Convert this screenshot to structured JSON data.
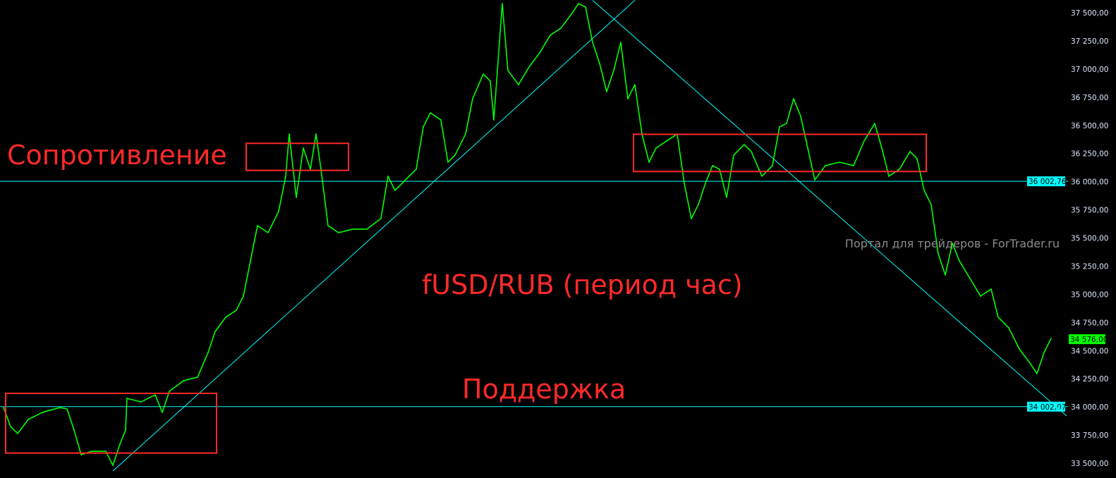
{
  "chart_data": {
    "type": "line",
    "title": "fUSD/RUB (период час)",
    "xlabel": "",
    "ylabel": "",
    "ylim": [
      33500,
      37500
    ],
    "yticks": [
      "33 500,00",
      "33 750,00",
      "34 000,00",
      "34 250,00",
      "34 500,00",
      "34 750,00",
      "35 000,00",
      "35 250,00",
      "35 500,00",
      "35 750,00",
      "36 000,00",
      "36 250,00",
      "36 500,00",
      "36 750,00",
      "37 000,00",
      "37 250,00",
      "37 500,00"
    ],
    "ytick_values": [
      33500,
      33750,
      34000,
      34250,
      34500,
      34750,
      35000,
      35250,
      35500,
      35750,
      36000,
      36250,
      36500,
      36750,
      37000,
      37250,
      37500
    ],
    "grid": false,
    "series": [
      {
        "color": "#00ff00",
        "points": [
          [
            1,
            33994
          ],
          [
            3,
            33825
          ],
          [
            5,
            33763
          ],
          [
            8,
            33888
          ],
          [
            12,
            33951
          ],
          [
            17,
            33994
          ],
          [
            19,
            33982
          ],
          [
            21,
            33794
          ],
          [
            23,
            33575
          ],
          [
            26,
            33606
          ],
          [
            30,
            33606
          ],
          [
            32,
            33481
          ],
          [
            34,
            33669
          ],
          [
            35.6,
            33794
          ],
          [
            36,
            34076
          ],
          [
            40,
            34044
          ],
          [
            44,
            34107
          ],
          [
            46,
            33951
          ],
          [
            48,
            34138
          ],
          [
            52,
            34232
          ],
          [
            56,
            34264
          ],
          [
            59,
            34483
          ],
          [
            61,
            34670
          ],
          [
            64,
            34796
          ],
          [
            67,
            34858
          ],
          [
            69,
            34983
          ],
          [
            71,
            35296
          ],
          [
            73,
            35609
          ],
          [
            76,
            35547
          ],
          [
            79,
            35735
          ],
          [
            81,
            36048
          ],
          [
            82,
            36423
          ],
          [
            84,
            35860
          ],
          [
            86,
            36298
          ],
          [
            88,
            36110
          ],
          [
            89.6,
            36423
          ],
          [
            91,
            36110
          ],
          [
            93,
            35609
          ],
          [
            96,
            35547
          ],
          [
            100,
            35578
          ],
          [
            104,
            35578
          ],
          [
            108,
            35672
          ],
          [
            110,
            36048
          ],
          [
            112,
            35922
          ],
          [
            116,
            36048
          ],
          [
            118,
            36110
          ],
          [
            120,
            36486
          ],
          [
            122,
            36611
          ],
          [
            125,
            36548
          ],
          [
            127,
            36173
          ],
          [
            129,
            36235
          ],
          [
            132,
            36423
          ],
          [
            134,
            36736
          ],
          [
            137,
            36955
          ],
          [
            139,
            36893
          ],
          [
            140,
            36548
          ],
          [
            141.6,
            37237
          ],
          [
            142.4,
            37581
          ],
          [
            144,
            36987
          ],
          [
            147,
            36861
          ],
          [
            150,
            37018
          ],
          [
            153,
            37143
          ],
          [
            156,
            37300
          ],
          [
            159,
            37362
          ],
          [
            162,
            37487
          ],
          [
            164,
            37581
          ],
          [
            166,
            37550
          ],
          [
            168,
            37237
          ],
          [
            170,
            37049
          ],
          [
            172,
            36799
          ],
          [
            174,
            36987
          ],
          [
            176,
            37237
          ],
          [
            178,
            36736
          ],
          [
            180,
            36861
          ],
          [
            182,
            36423
          ],
          [
            184,
            36173
          ],
          [
            186,
            36298
          ],
          [
            189,
            36361
          ],
          [
            192,
            36423
          ],
          [
            194,
            35985
          ],
          [
            196,
            35672
          ],
          [
            198,
            35797
          ],
          [
            200,
            35985
          ],
          [
            202,
            36142
          ],
          [
            204,
            36110
          ],
          [
            206,
            35860
          ],
          [
            208,
            36235
          ],
          [
            211,
            36329
          ],
          [
            213,
            36267
          ],
          [
            216,
            36048
          ],
          [
            219,
            36142
          ],
          [
            221,
            36486
          ],
          [
            223,
            36517
          ],
          [
            225,
            36736
          ],
          [
            227,
            36580
          ],
          [
            229,
            36298
          ],
          [
            231,
            36016
          ],
          [
            234,
            36142
          ],
          [
            238,
            36173
          ],
          [
            242,
            36142
          ],
          [
            245,
            36361
          ],
          [
            248,
            36517
          ],
          [
            250,
            36298
          ],
          [
            252,
            36048
          ],
          [
            255,
            36110
          ],
          [
            258,
            36267
          ],
          [
            260,
            36204
          ],
          [
            262,
            35922
          ],
          [
            264,
            35797
          ],
          [
            266,
            35359
          ],
          [
            268,
            35171
          ],
          [
            270,
            35453
          ],
          [
            272,
            35296
          ],
          [
            275,
            35140
          ],
          [
            278,
            34983
          ],
          [
            281,
            35046
          ],
          [
            283,
            34796
          ],
          [
            286,
            34702
          ],
          [
            289,
            34514
          ],
          [
            292,
            34389
          ],
          [
            294,
            34295
          ],
          [
            296,
            34483
          ],
          [
            298,
            34608
          ]
        ]
      }
    ],
    "horizontal_levels": [
      {
        "value": 36002.76,
        "label": "36 002,76",
        "color": "#00ffff"
      },
      {
        "value": 34002.07,
        "label": "34 002,07",
        "color": "#00ffff"
      }
    ],
    "last_price": {
      "value": 34576,
      "label": "34 576,00",
      "color": "#00ff00"
    },
    "trendlines": [
      {
        "from": [
          32,
          33430
        ],
        "to": [
          180,
          37610
        ],
        "color": "#00ffff"
      },
      {
        "from": [
          168,
          37610
        ],
        "to": [
          302.4,
          33920
        ],
        "color": "#00ffff"
      }
    ],
    "zones": [
      {
        "from": [
          1.6,
          34120
        ],
        "to": [
          61.4,
          33590
        ],
        "color": "#ff2a2a"
      },
      {
        "from": [
          69.8,
          36340
        ],
        "to": [
          98.8,
          36100
        ],
        "color": "#ff2a2a"
      },
      {
        "from": [
          179.6,
          36420
        ],
        "to": [
          262.6,
          36090
        ],
        "color": "#ff2a2a"
      }
    ],
    "annotations": {
      "resistance": "Сопротивление",
      "support": "Поддержка",
      "title": "fUSD/RUB (период час)"
    }
  },
  "watermark": "Портал для трейдеров - ForTrader.ru"
}
